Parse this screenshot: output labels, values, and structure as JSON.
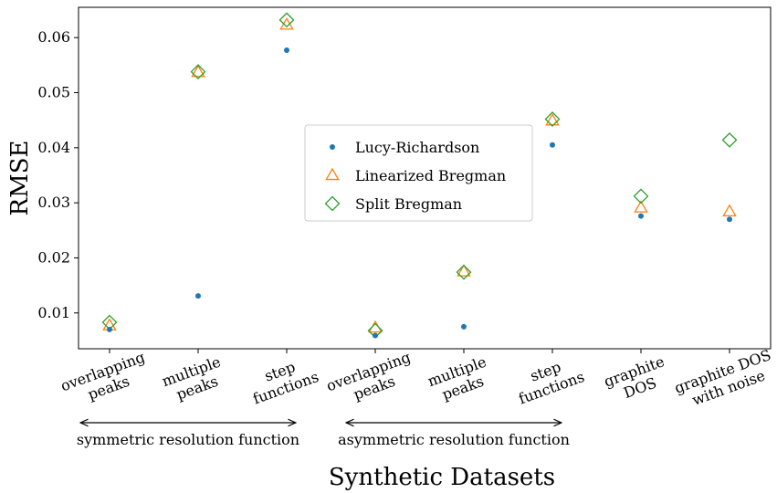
{
  "chart_data": {
    "type": "scatter",
    "xlabel": "Synthetic Datasets",
    "ylabel": "RMSE",
    "ylim": [
      0.0035,
      0.0655
    ],
    "yticks": [
      "0.01",
      "0.02",
      "0.03",
      "0.04",
      "0.05",
      "0.06"
    ],
    "ytick_values": [
      0.01,
      0.02,
      0.03,
      0.04,
      0.05,
      0.06
    ],
    "grid": false,
    "legend_position": "center",
    "categories": [
      [
        "overlapping",
        "peaks"
      ],
      [
        "multiple",
        "peaks"
      ],
      [
        "step",
        "functions"
      ],
      [
        "overlapping",
        "peaks"
      ],
      [
        "multiple",
        "peaks"
      ],
      [
        "step",
        "functions"
      ],
      [
        "graphite",
        "DOS"
      ],
      [
        "graphite DOS",
        "with noise"
      ]
    ],
    "series": [
      {
        "name": "Lucy-Richardson",
        "marker": "dot",
        "color": "#1f77b4",
        "values": [
          0.007,
          0.0131,
          0.0577,
          0.0059,
          0.0075,
          0.0405,
          0.0276,
          0.027
        ]
      },
      {
        "name": "Linearized Bregman",
        "marker": "triangle",
        "color": "#ff7f0e",
        "values": [
          0.0077,
          0.0537,
          0.0623,
          0.0073,
          0.0175,
          0.0449,
          0.0291,
          0.0284
        ]
      },
      {
        "name": "Split Bregman",
        "marker": "diamond",
        "color": "#2ca02c",
        "values": [
          0.0083,
          0.0538,
          0.0632,
          0.0068,
          0.0174,
          0.0452,
          0.0312,
          0.0414
        ]
      }
    ],
    "groups": [
      {
        "label": "symmetric resolution function",
        "from_index": 0,
        "to_index": 2
      },
      {
        "label": "asymmetric resolution function",
        "from_index": 3,
        "to_index": 5
      }
    ]
  }
}
